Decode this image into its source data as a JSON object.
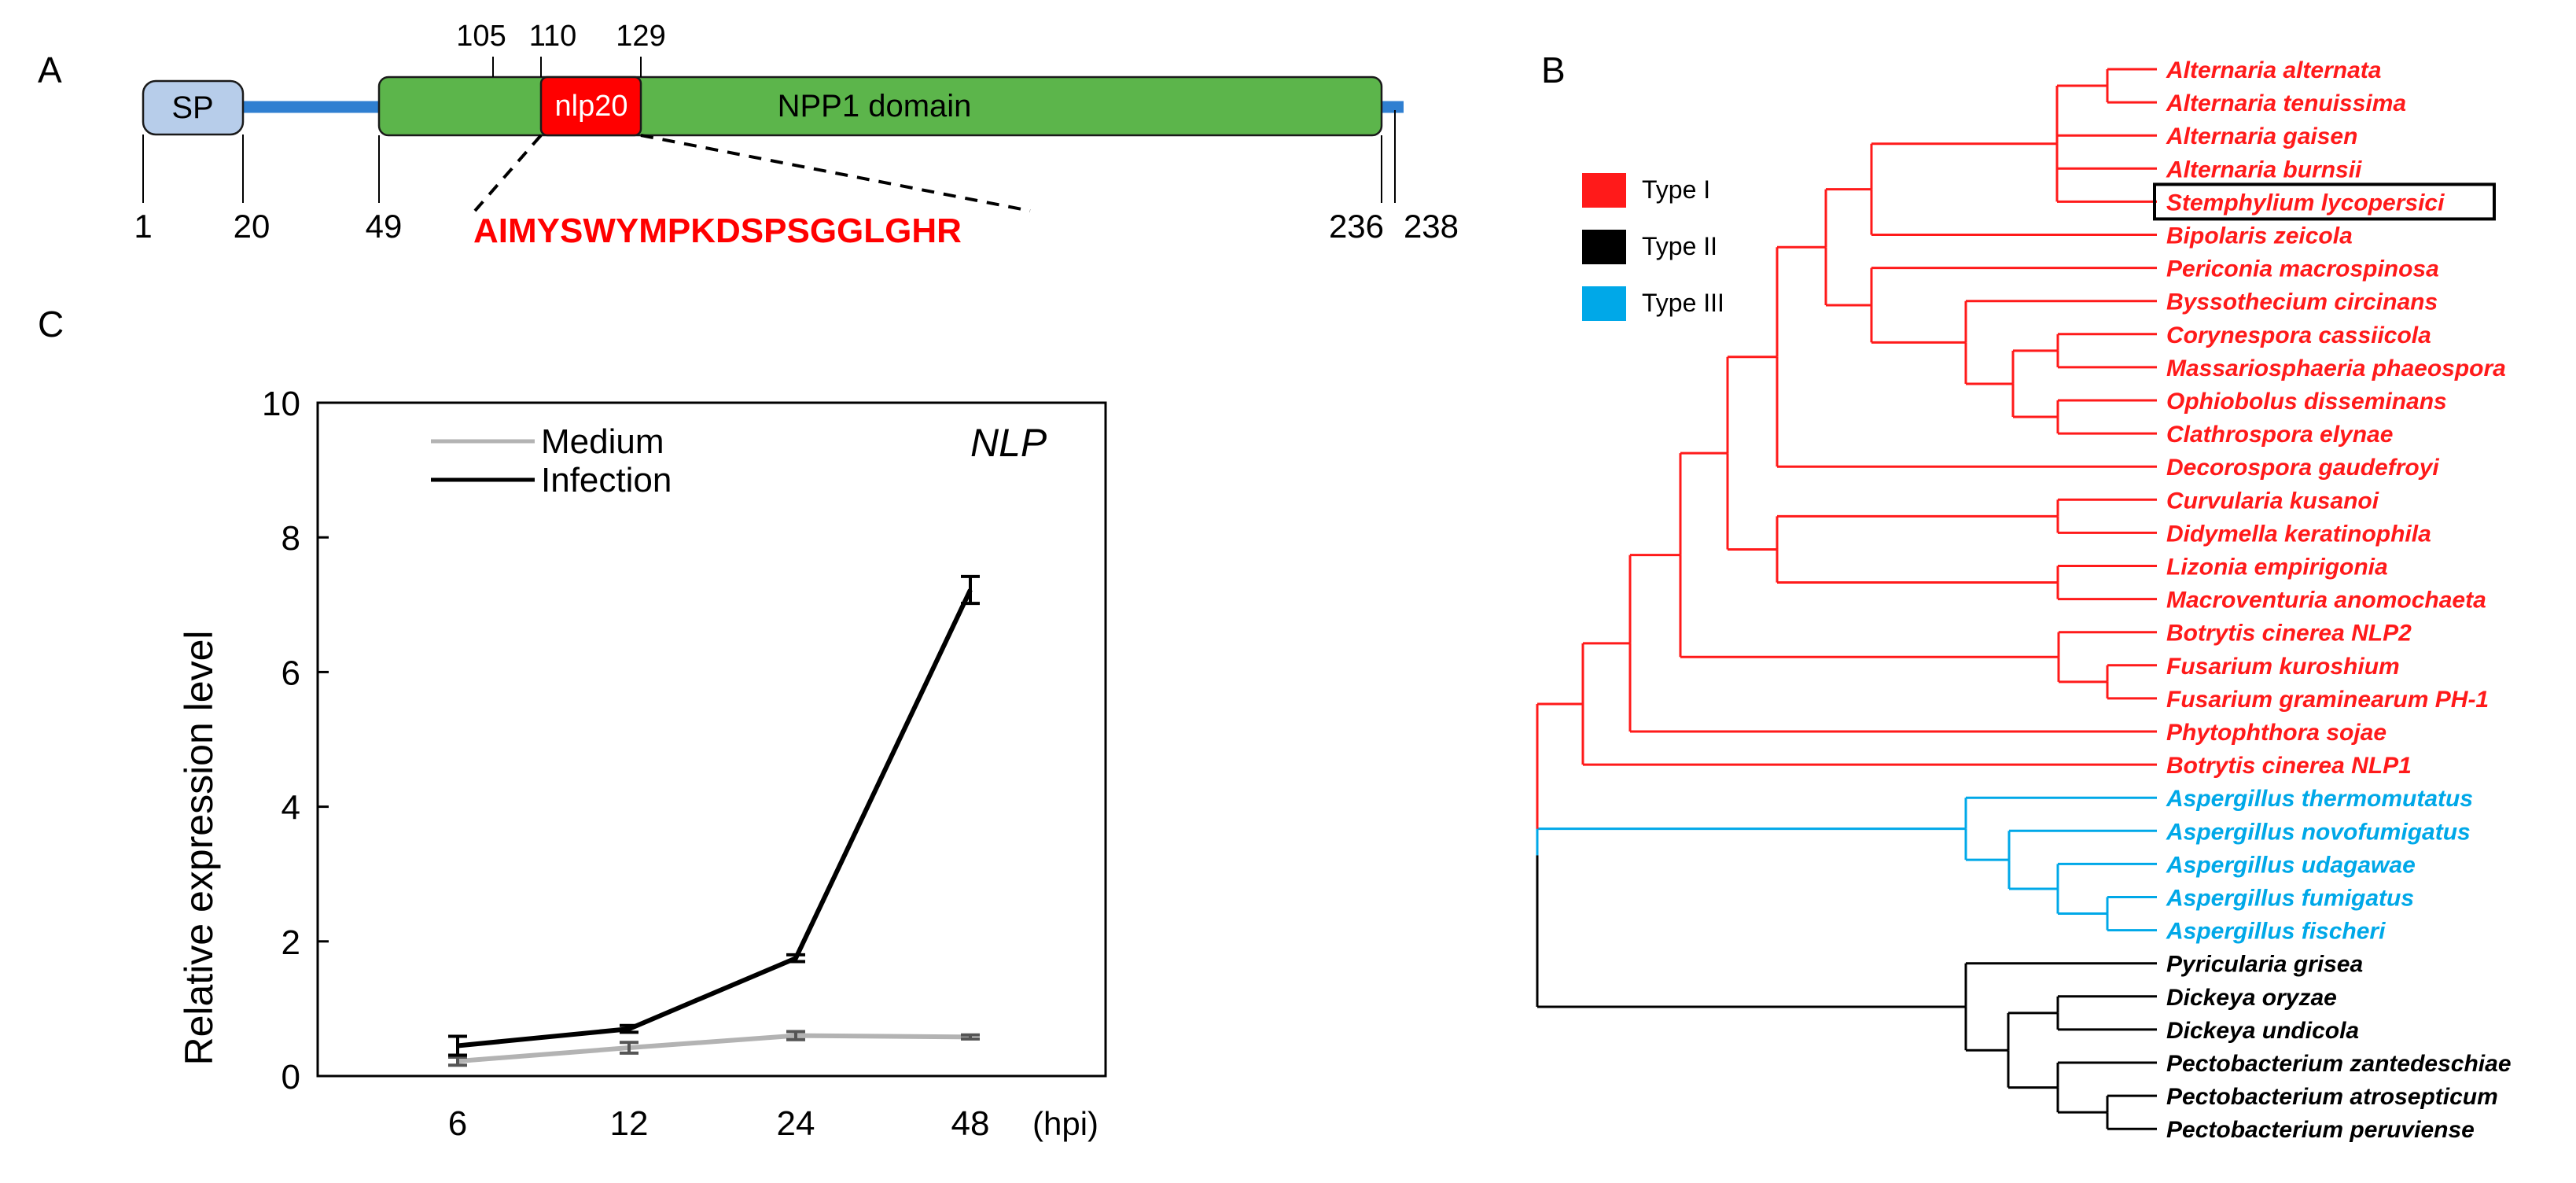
{
  "panels": {
    "a": "A",
    "b": "B",
    "c": "C"
  },
  "domain_diagram": {
    "top_labels": [
      "105",
      "110",
      "129"
    ],
    "bottom_labels": [
      "1",
      "20",
      "49",
      "236",
      "238"
    ],
    "sp_label": "SP",
    "nlp20_label": "nlp20",
    "domain_label": "NPP1 domain",
    "peptide": "AIMYSWYMPKDSPSGGLGHR",
    "colors": {
      "sp": "#b7cdea",
      "domain": "#5cb54b",
      "nlp20": "#ff0000",
      "backbone": "#2f7fd1",
      "peptide": "#ff0000"
    }
  },
  "chart_data": {
    "type": "line",
    "title": "NLP",
    "xlabel": "(hpi)",
    "ylabel": "Relative expression level",
    "categories": [
      "6",
      "12",
      "24",
      "48"
    ],
    "ylim": [
      0,
      10
    ],
    "yticks": [
      0,
      2,
      4,
      6,
      8,
      10
    ],
    "series": [
      {
        "name": "Medium",
        "color": "#b3b3b3",
        "values": [
          0.22,
          0.42,
          0.6,
          0.58
        ],
        "errors": [
          0.06,
          0.08,
          0.06,
          0.03
        ]
      },
      {
        "name": "Infection",
        "color": "#000000",
        "values": [
          0.45,
          0.7,
          1.75,
          7.22
        ],
        "errors": [
          0.14,
          0.05,
          0.05,
          0.2
        ]
      }
    ],
    "legend_position": "top-left"
  },
  "tree": {
    "legend": [
      {
        "label": "Type I",
        "color": "#ff1a1a"
      },
      {
        "label": "Type II",
        "color": "#000000"
      },
      {
        "label": "Type III",
        "color": "#00a8e8"
      }
    ],
    "highlight": "Stemphylium lycopersici",
    "leaves": [
      {
        "name": "Alternaria alternata",
        "type": "I"
      },
      {
        "name": "Alternaria tenuissima",
        "type": "I"
      },
      {
        "name": "Alternaria gaisen",
        "type": "I"
      },
      {
        "name": "Alternaria burnsii",
        "type": "I"
      },
      {
        "name": "Stemphylium lycopersici",
        "type": "I"
      },
      {
        "name": "Bipolaris zeicola",
        "type": "I"
      },
      {
        "name": "Periconia macrospinosa",
        "type": "I"
      },
      {
        "name": "Byssothecium circinans",
        "type": "I"
      },
      {
        "name": "Corynespora cassiicola",
        "type": "I"
      },
      {
        "name": "Massariosphaeria phaeospora",
        "type": "I"
      },
      {
        "name": "Ophiobolus disseminans",
        "type": "I"
      },
      {
        "name": "Clathrospora elynae",
        "type": "I"
      },
      {
        "name": "Decorospora gaudefroyi",
        "type": "I"
      },
      {
        "name": "Curvularia kusanoi",
        "type": "I"
      },
      {
        "name": "Didymella keratinophila",
        "type": "I"
      },
      {
        "name": "Lizonia empirigonia",
        "type": "I"
      },
      {
        "name": "Macroventuria anomochaeta",
        "type": "I"
      },
      {
        "name": "Botrytis cinerea NLP2",
        "type": "I"
      },
      {
        "name": "Fusarium kuroshium",
        "type": "I"
      },
      {
        "name": "Fusarium graminearum PH-1",
        "type": "I"
      },
      {
        "name": "Phytophthora sojae",
        "type": "I"
      },
      {
        "name": "Botrytis cinerea NLP1",
        "type": "I"
      },
      {
        "name": "Aspergillus thermomutatus",
        "type": "III"
      },
      {
        "name": "Aspergillus novofumigatus",
        "type": "III"
      },
      {
        "name": "Aspergillus udagawae",
        "type": "III"
      },
      {
        "name": "Aspergillus fumigatus",
        "type": "III"
      },
      {
        "name": "Aspergillus fischeri",
        "type": "III"
      },
      {
        "name": "Pyricularia grisea",
        "type": "II"
      },
      {
        "name": "Dickeya oryzae",
        "type": "II"
      },
      {
        "name": "Dickeya undicola",
        "type": "II"
      },
      {
        "name": "Pectobacterium zantedeschiae",
        "type": "II"
      },
      {
        "name": "Pectobacterium atrosepticum",
        "type": "II"
      },
      {
        "name": "Pectobacterium peruviense",
        "type": "II"
      }
    ]
  }
}
